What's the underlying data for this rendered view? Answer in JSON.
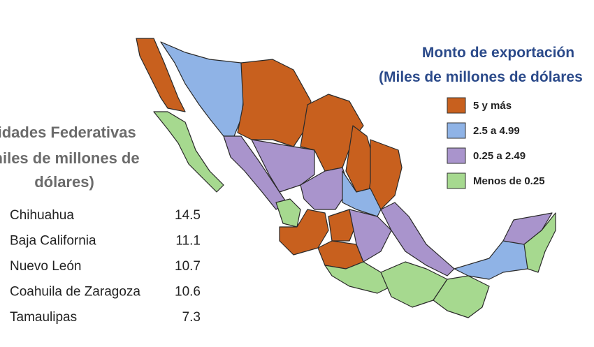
{
  "side_title": [
    "tidades Federativas",
    "miles de millones de",
    "dólares)"
  ],
  "table": {
    "rows": [
      [
        "Chihuahua",
        14.5
      ],
      [
        "Baja California",
        11.1
      ],
      [
        "Nuevo León",
        10.7
      ],
      [
        "Coahuila de Zaragoza",
        10.6
      ],
      [
        "Tamaulipas",
        7.3
      ]
    ]
  },
  "legend": {
    "title": [
      "Monto de exportación",
      "(Miles de millones de dólares"
    ],
    "items": [
      {
        "label": "5 y más",
        "color": "#c8601e"
      },
      {
        "label": "2.5 a 4.99",
        "color": "#8fb3e6"
      },
      {
        "label": "0.25 a 2.49",
        "color": "#a994cc"
      },
      {
        "label": "Menos de 0.25",
        "color": "#a6d98f"
      }
    ]
  }
}
